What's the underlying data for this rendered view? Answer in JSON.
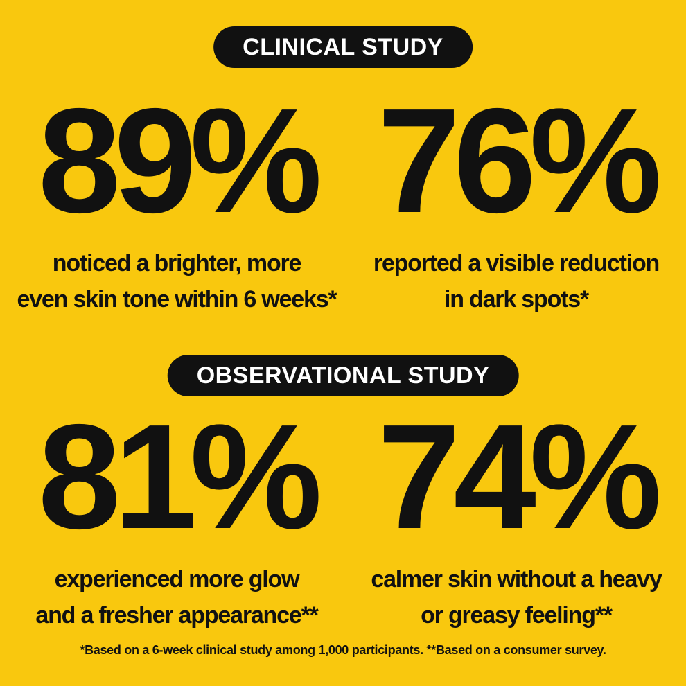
{
  "sections": [
    {
      "label": "CLINICAL STUDY",
      "stats": [
        {
          "value": "89%",
          "caption": [
            "noticed a brighter, more",
            "even skin tone within 6 weeks*"
          ]
        },
        {
          "value": "76%",
          "caption": [
            "reported a visible reduction",
            "in dark spots*"
          ]
        }
      ]
    },
    {
      "label": "OBSERVATIONAL STUDY",
      "stats": [
        {
          "value": "81%",
          "caption": [
            "experienced more glow",
            "and a fresher appearance**"
          ]
        },
        {
          "value": "74%",
          "caption": [
            "calmer skin without a heavy",
            "or greasy feeling**"
          ]
        }
      ]
    }
  ],
  "footnote": "*Based on a 6-week clinical study among 1,000 participants. **Based on a consumer survey."
}
